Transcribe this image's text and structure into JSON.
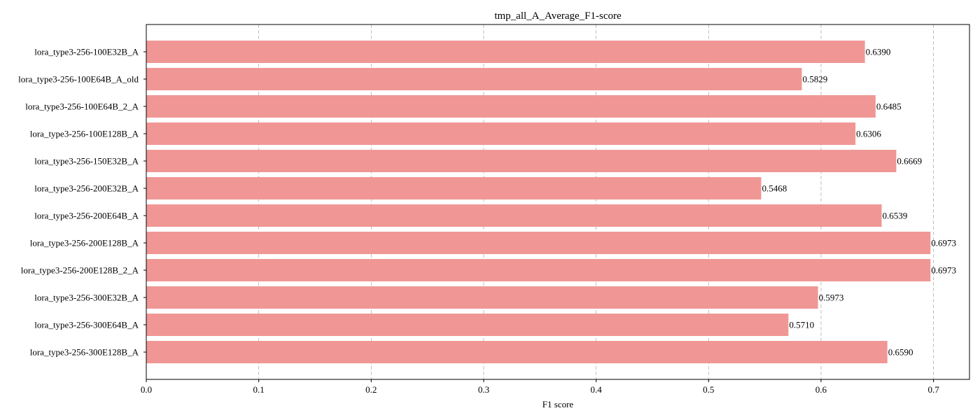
{
  "chart_data": {
    "type": "bar",
    "orientation": "horizontal",
    "title": "tmp_all_A_Average_F1-score",
    "xlabel": "F1 score",
    "ylabel": "",
    "xlim": [
      0.0,
      0.732
    ],
    "xticks": [
      0.0,
      0.1,
      0.2,
      0.3,
      0.4,
      0.5,
      0.6,
      0.7
    ],
    "xtick_labels": [
      "0.0",
      "0.1",
      "0.2",
      "0.3",
      "0.4",
      "0.5",
      "0.6",
      "0.7"
    ],
    "grid": "x-dashed",
    "bar_color": "#f09795",
    "categories": [
      "lora_type3-256-100E32B_A",
      "lora_type3-256-100E64B_A_old",
      "lora_type3-256-100E64B_2_A",
      "lora_type3-256-100E128B_A",
      "lora_type3-256-150E32B_A",
      "lora_type3-256-200E32B_A",
      "lora_type3-256-200E64B_A",
      "lora_type3-256-200E128B_A",
      "lora_type3-256-200E128B_2_A",
      "lora_type3-256-300E32B_A",
      "lora_type3-256-300E64B_A",
      "lora_type3-256-300E128B_A"
    ],
    "values": [
      0.639,
      0.5829,
      0.6485,
      0.6306,
      0.6669,
      0.5468,
      0.6539,
      0.6973,
      0.6973,
      0.5973,
      0.571,
      0.659
    ],
    "value_labels": [
      "0.6390",
      "0.5829",
      "0.6485",
      "0.6306",
      "0.6669",
      "0.5468",
      "0.6539",
      "0.6973",
      "0.6973",
      "0.5973",
      "0.5710",
      "0.6590"
    ]
  }
}
